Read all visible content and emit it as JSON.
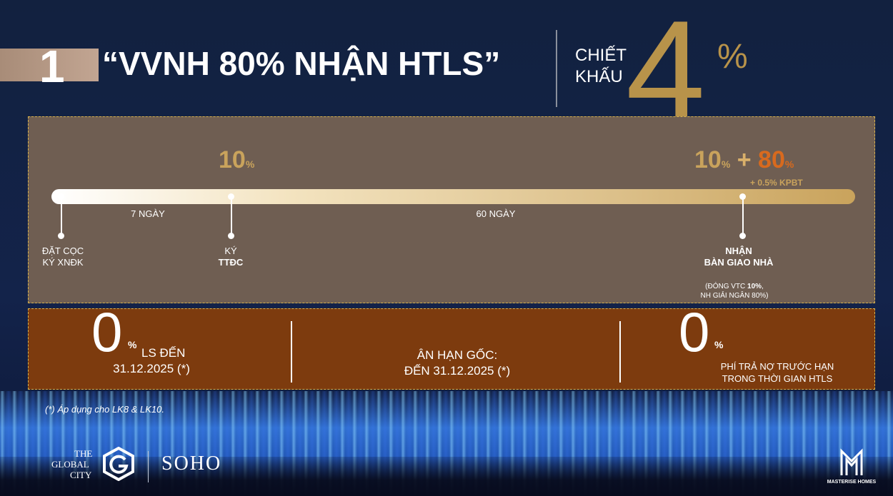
{
  "header": {
    "number": "1",
    "title": "“VVNH 80% NHẬN HTLS”",
    "discount_label": [
      "CHIẾT",
      "KHẤU"
    ],
    "discount_value": "4",
    "discount_unit": "%"
  },
  "timeline": {
    "intervals": [
      "7 NGÀY",
      "60 NGÀY"
    ],
    "milestones": [
      {
        "label": [
          "ĐẶT CỌC",
          "KÝ XNĐK"
        ]
      },
      {
        "amount": "10",
        "unit": "%",
        "label": [
          "KÝ",
          "TTĐC"
        ]
      },
      {
        "amount": "10",
        "unit": "%",
        "plus": "+",
        "amount_loan": "80",
        "unit_loan": "%",
        "extra": "+ 0.5% KPBT",
        "label": [
          "NHẬN",
          "BÀN GIAO NHÀ"
        ],
        "note": [
          "(ĐÓNG VTC ",
          "10%",
          ",",
          "NH GIẢI NGÂN 80%)"
        ]
      }
    ]
  },
  "benefits": [
    {
      "value": "0",
      "unit": "%",
      "lines": [
        "LS ĐẾN",
        "31.12.2025 (*)"
      ]
    },
    {
      "lines": [
        "ÂN HẠN GỐC:",
        "ĐẾN 31.12.2025 (*)"
      ]
    },
    {
      "value": "0",
      "unit": "%",
      "lines": [
        "PHÍ TRẢ NỢ TRƯỚC HẠN",
        "TRONG THỜI GIAN HTLS"
      ]
    }
  ],
  "footnote": "(*) Áp dụng cho LK8 & LK10.",
  "logos": {
    "global_city": [
      "THE",
      "GLOBAL",
      "CITY"
    ],
    "soho": "SOHO",
    "masterise": "MASTERISE HOMES"
  }
}
